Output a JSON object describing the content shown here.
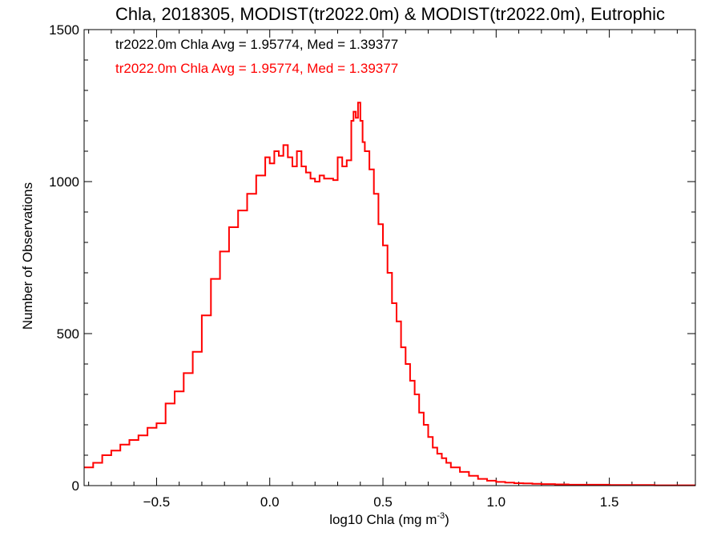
{
  "chart_data": {
    "type": "line",
    "title": "Chla, 2018305, MODIST(tr2022.0m) & MODIST(tr2022.0m), Eutrophic",
    "xlabel_main": "log10 Chla (mg m",
    "xlabel_sup": "-3",
    "xlabel_close": ")",
    "ylabel": "Number of Observations",
    "xlim": [
      -0.82,
      1.88
    ],
    "ylim": [
      0,
      1500
    ],
    "x_ticks": [
      -0.5,
      0.0,
      0.5,
      1.0,
      1.5
    ],
    "x_tick_labels": [
      "−0.5",
      "0.0",
      "0.5",
      "1.0",
      "1.5"
    ],
    "y_ticks": [
      0,
      500,
      1000,
      1500
    ],
    "y_tick_labels": [
      "0",
      "500",
      "1000",
      "1500"
    ],
    "annotations": [
      {
        "text": "tr2022.0m Chla Avg = 1.95774, Med = 1.39377",
        "color": "#000000"
      },
      {
        "text": "tr2022.0m Chla Avg = 1.95774, Med = 1.39377",
        "color": "#ff0000"
      }
    ],
    "series": [
      {
        "color": "#ff0000",
        "x": [
          -0.82,
          -0.78,
          -0.74,
          -0.7,
          -0.66,
          -0.62,
          -0.58,
          -0.54,
          -0.5,
          -0.46,
          -0.42,
          -0.38,
          -0.34,
          -0.3,
          -0.26,
          -0.22,
          -0.18,
          -0.14,
          -0.1,
          -0.06,
          -0.02,
          0.0,
          0.02,
          0.04,
          0.06,
          0.08,
          0.1,
          0.12,
          0.14,
          0.16,
          0.18,
          0.2,
          0.22,
          0.24,
          0.26,
          0.28,
          0.3,
          0.32,
          0.34,
          0.36,
          0.37,
          0.38,
          0.39,
          0.4,
          0.41,
          0.42,
          0.44,
          0.46,
          0.48,
          0.5,
          0.52,
          0.54,
          0.56,
          0.58,
          0.6,
          0.62,
          0.64,
          0.66,
          0.68,
          0.7,
          0.72,
          0.74,
          0.76,
          0.78,
          0.8,
          0.84,
          0.88,
          0.92,
          0.96,
          1.0,
          1.04,
          1.08,
          1.12,
          1.16,
          1.2,
          1.26,
          1.32,
          1.4,
          1.5,
          1.6,
          1.7,
          1.8,
          1.88
        ],
        "y": [
          60,
          75,
          100,
          115,
          135,
          150,
          165,
          190,
          205,
          270,
          310,
          370,
          440,
          560,
          680,
          770,
          850,
          905,
          960,
          1020,
          1080,
          1060,
          1100,
          1085,
          1120,
          1080,
          1050,
          1100,
          1050,
          1030,
          1010,
          1000,
          1020,
          1010,
          1010,
          1005,
          1080,
          1050,
          1070,
          1200,
          1230,
          1210,
          1260,
          1200,
          1130,
          1100,
          1040,
          960,
          860,
          790,
          700,
          600,
          540,
          455,
          400,
          345,
          300,
          240,
          200,
          160,
          125,
          105,
          90,
          75,
          60,
          45,
          32,
          22,
          16,
          12,
          10,
          8,
          7,
          6,
          5,
          4,
          3,
          3,
          2,
          2,
          1,
          1,
          1
        ]
      }
    ]
  }
}
